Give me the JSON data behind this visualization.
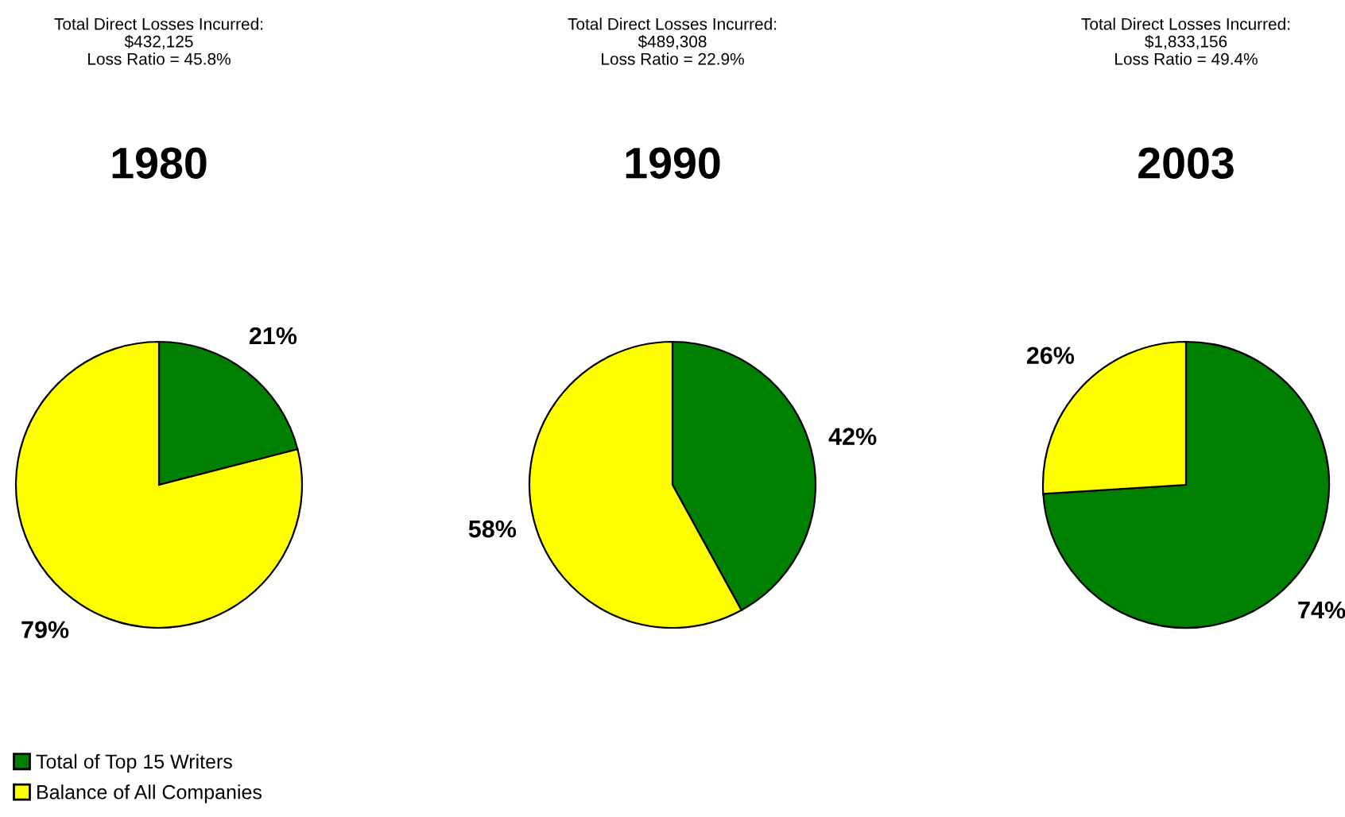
{
  "chart_data": [
    {
      "type": "pie",
      "title": "1980",
      "annotations": [
        "Total Direct Losses Incurred:",
        "$432,125",
        "Loss Ratio = 45.8%"
      ],
      "categories": [
        "Total of Top 15 Writers",
        "Balance of All Companies"
      ],
      "values": [
        21,
        79
      ],
      "colors": [
        "#008000",
        "#ffff00"
      ],
      "value_labels": [
        "21%",
        "79%"
      ],
      "legend": "bottom left"
    },
    {
      "type": "pie",
      "title": "1990",
      "annotations": [
        "Total Direct Losses Incurred:",
        "$489,308",
        "Loss Ratio = 22.9%"
      ],
      "values": [
        42,
        58
      ],
      "colors": [
        "#008000",
        "#ffff00"
      ],
      "value_labels": [
        "42%",
        "58%"
      ]
    },
    {
      "type": "pie",
      "title": "2003",
      "annotations": [
        "Total Direct Losses Incurred:",
        "$1,833,156",
        "Loss Ratio = 49.4%"
      ],
      "values": [
        74,
        26
      ],
      "colors": [
        "#008000",
        "#ffff00"
      ],
      "value_labels": [
        "74%",
        "26%"
      ]
    }
  ]
}
